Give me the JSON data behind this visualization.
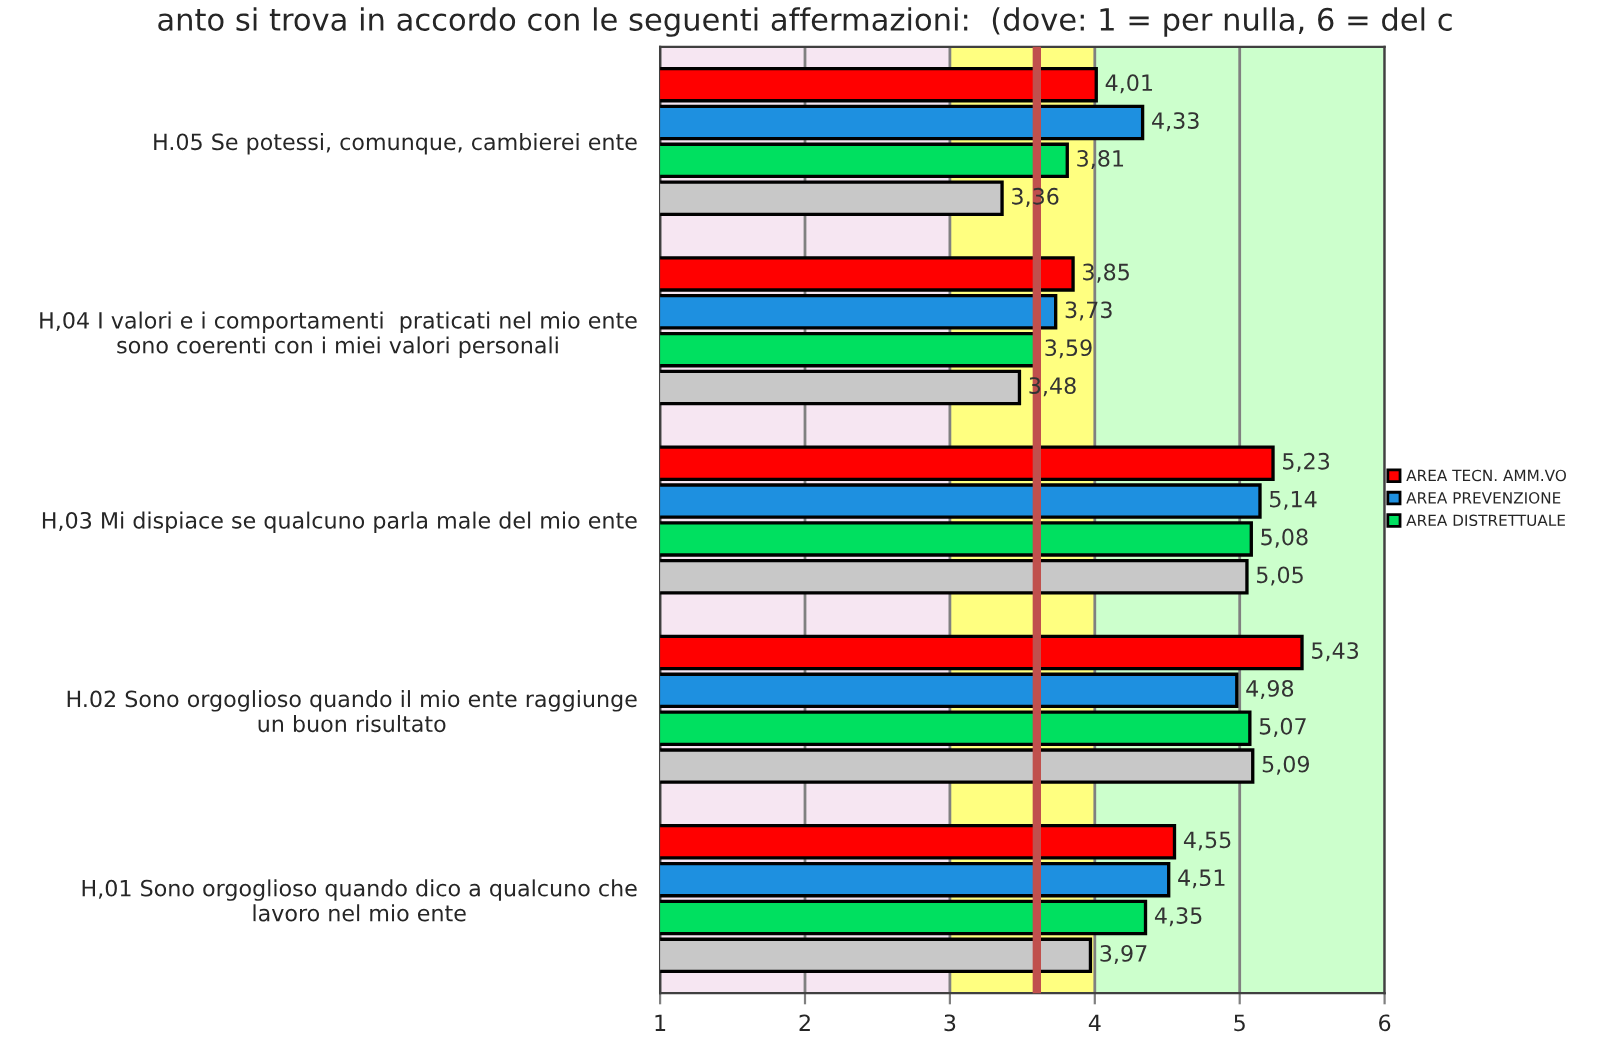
{
  "chart_data": {
    "type": "bar",
    "orientation": "horizontal",
    "title": "anto si trova in accordo con le seguenti affermazioni:  (dove: 1 = per nulla, 6 = del c",
    "categories": [
      "H.05 Se potessi, comunque, cambierei ente",
      "H,04 I valori e i comportamenti  praticati nel mio ente\nsono coerenti con i miei valori personali",
      "H,03 Mi dispiace se qualcuno parla male del mio ente",
      "H.02 Sono orgoglioso quando il mio ente raggiunge\nun buon risultato",
      "H,01 Sono orgoglioso quando dico a qualcuno che\nlavoro nel mio ente"
    ],
    "series": [
      {
        "name": "AREA TECN. AMM.VO",
        "color": "#ff0000",
        "values": [
          4.01,
          3.85,
          5.23,
          5.43,
          4.55
        ],
        "value_labels": [
          "4,01",
          "3,85",
          "5,23",
          "5,43",
          "4,55"
        ]
      },
      {
        "name": "AREA PREVENZIONE",
        "color": "#1e90e0",
        "values": [
          4.33,
          3.73,
          5.14,
          4.98,
          4.51
        ],
        "value_labels": [
          "4,33",
          "3,73",
          "5,14",
          "4,98",
          "4,51"
        ]
      },
      {
        "name": "AREA DISTRETTUALE",
        "color": "#00e060",
        "values": [
          3.81,
          3.59,
          5.08,
          5.07,
          4.35
        ],
        "value_labels": [
          "3,81",
          "3,59",
          "5,08",
          "5,07",
          "4,35"
        ]
      },
      {
        "color": "#c8c8c8",
        "values": [
          3.36,
          3.48,
          5.05,
          5.09,
          3.97
        ],
        "value_labels": [
          "3,36",
          "3,48",
          "5,05",
          "5,09",
          "3,97"
        ]
      }
    ],
    "xlim": [
      1,
      6
    ],
    "xticks": [
      1,
      2,
      3,
      4,
      5,
      6
    ],
    "grid": "x",
    "legend": "right",
    "bands": [
      {
        "axis": "x",
        "from": 1,
        "to": 3,
        "color": "#f6e6f2"
      },
      {
        "axis": "x",
        "from": 3,
        "to": 4,
        "color": "#ffff80"
      },
      {
        "axis": "x",
        "from": 4,
        "to": 6,
        "color": "#ccffcc"
      }
    ],
    "ref_lines": [
      {
        "axis": "x",
        "value": 3.6,
        "color": "#c0504d"
      }
    ]
  }
}
